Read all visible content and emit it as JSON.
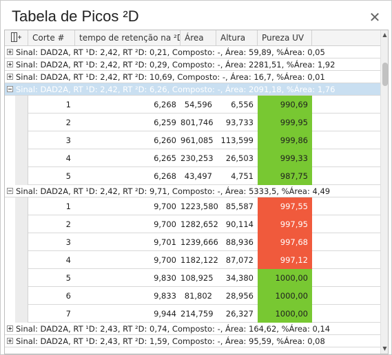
{
  "window": {
    "title": "Tabela de Picos ²D",
    "close_glyph": "✕"
  },
  "columns": [
    {
      "key": "corte",
      "label": "Corte #"
    },
    {
      "key": "tempo",
      "label": "tempo de retenção na ²D"
    },
    {
      "key": "area",
      "label": "Área"
    },
    {
      "key": "altura",
      "label": "Altura"
    },
    {
      "key": "pureza",
      "label": "Pureza UV"
    }
  ],
  "colors": {
    "pure_ok": "#78c832",
    "pure_bad": "#f05a3c",
    "selected_group": "#c9dff1"
  },
  "rows": [
    {
      "type": "group",
      "expanded": false,
      "text": "Sinal: DAD2A, RT ¹D: 2,42, RT ²D: 0,21, Composto: -, Área: 59,89, %Área: 0,05"
    },
    {
      "type": "group",
      "expanded": false,
      "text": "Sinal: DAD2A, RT ¹D: 2,42, RT ²D: 0,29, Composto: -, Área: 2281,51, %Área: 1,92"
    },
    {
      "type": "group",
      "expanded": false,
      "text": "Sinal: DAD2A, RT ¹D: 2,42, RT ²D: 10,69, Composto: -, Área: 16,7, %Área: 0,01"
    },
    {
      "type": "group",
      "expanded": true,
      "selected": true,
      "text": "Sinal: DAD2A, RT ¹D: 2,42, RT ²D: 6,26, Composto: -, Área: 2091,18, %Área: 1,76"
    },
    {
      "type": "data",
      "corte": "1",
      "tempo": "6,268",
      "area": "54,596",
      "altura": "6,556",
      "pureza": "990,69",
      "status": "ok"
    },
    {
      "type": "data",
      "corte": "2",
      "tempo": "6,259",
      "area": "801,746",
      "altura": "93,733",
      "pureza": "999,95",
      "status": "ok"
    },
    {
      "type": "data",
      "corte": "3",
      "tempo": "6,260",
      "area": "961,085",
      "altura": "113,599",
      "pureza": "999,86",
      "status": "ok"
    },
    {
      "type": "data",
      "corte": "4",
      "tempo": "6,265",
      "area": "230,253",
      "altura": "26,503",
      "pureza": "999,33",
      "status": "ok"
    },
    {
      "type": "data",
      "corte": "5",
      "tempo": "6,268",
      "area": "43,497",
      "altura": "4,751",
      "pureza": "987,75",
      "status": "ok"
    },
    {
      "type": "group",
      "expanded": true,
      "text": "Sinal: DAD2A, RT ¹D: 2,42, RT ²D: 9,71, Composto: -, Área: 5333,5, %Área: 4,49"
    },
    {
      "type": "data",
      "corte": "1",
      "tempo": "9,700",
      "area": "1223,580",
      "altura": "85,587",
      "pureza": "997,55",
      "status": "bad"
    },
    {
      "type": "data",
      "corte": "2",
      "tempo": "9,700",
      "area": "1282,652",
      "altura": "90,114",
      "pureza": "997,95",
      "status": "bad"
    },
    {
      "type": "data",
      "corte": "3",
      "tempo": "9,701",
      "area": "1239,666",
      "altura": "88,936",
      "pureza": "997,68",
      "status": "bad"
    },
    {
      "type": "data",
      "corte": "4",
      "tempo": "9,700",
      "area": "1182,122",
      "altura": "87,072",
      "pureza": "997,12",
      "status": "bad"
    },
    {
      "type": "data",
      "corte": "5",
      "tempo": "9,830",
      "area": "108,925",
      "altura": "34,380",
      "pureza": "1000,00",
      "status": "ok"
    },
    {
      "type": "data",
      "corte": "6",
      "tempo": "9,833",
      "area": "81,802",
      "altura": "28,956",
      "pureza": "1000,00",
      "status": "ok"
    },
    {
      "type": "data",
      "corte": "7",
      "tempo": "9,944",
      "area": "214,759",
      "altura": "26,327",
      "pureza": "1000,00",
      "status": "ok"
    },
    {
      "type": "group",
      "expanded": false,
      "text": "Sinal: DAD2A, RT ¹D: 2,43, RT ²D: 0,74, Composto: -, Área: 164,62, %Área: 0,14"
    },
    {
      "type": "group",
      "expanded": false,
      "text": "Sinal: DAD2A, RT ¹D: 2,43, RT ²D: 1,59, Composto: -, Área: 95,59, %Área: 0,08"
    }
  ],
  "scrollbar": {
    "position": 0.08
  }
}
